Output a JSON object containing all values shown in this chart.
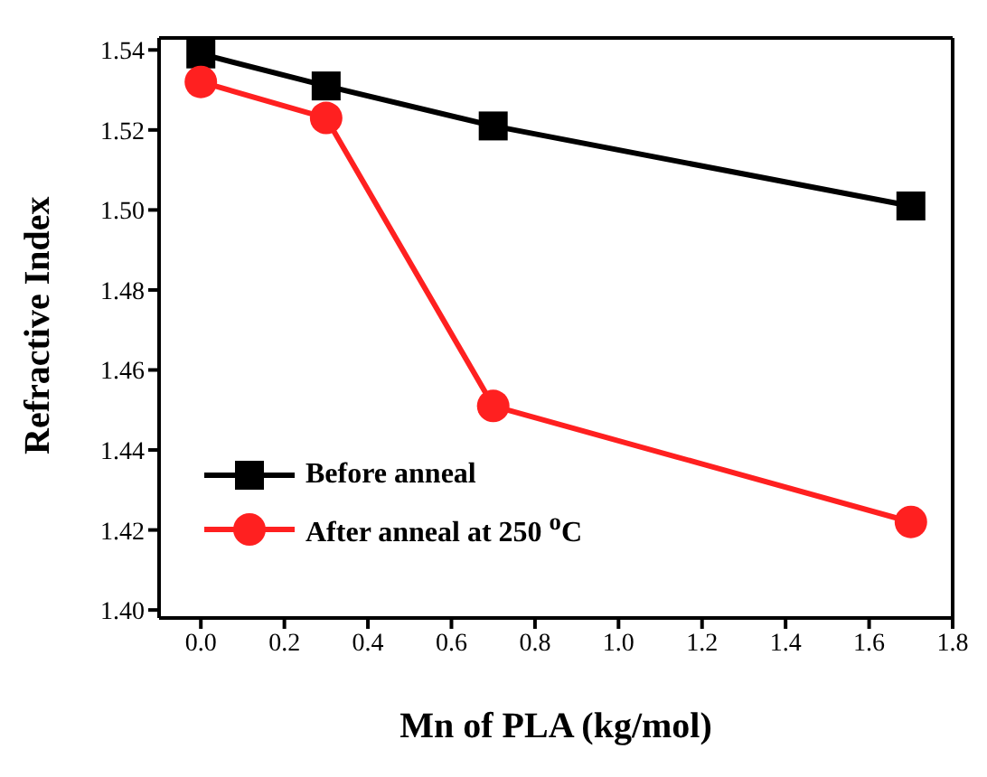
{
  "chart_data": {
    "type": "line",
    "xlabel": "Mn of PLA (kg/mol)",
    "ylabel": "Refractive Index",
    "x": [
      0.0,
      0.3,
      0.7,
      1.7
    ],
    "series": [
      {
        "name": "Before anneal",
        "color": "#000000",
        "marker": "square",
        "values": [
          1.539,
          1.531,
          1.521,
          1.501
        ]
      },
      {
        "name": "After anneal at 250 $^{o}$C",
        "color": "#ff2020",
        "marker": "circle",
        "values": [
          1.532,
          1.523,
          1.451,
          1.422
        ]
      }
    ],
    "xlim": [
      -0.1,
      1.8
    ],
    "xticks": [
      {
        "value": 0,
        "label": "0.0"
      },
      0.2,
      0.4,
      0.6,
      0.8,
      {
        "value": 1,
        "label": "1.0"
      },
      1.2,
      1.4,
      1.6,
      1.8
    ],
    "ylim": [
      1.398,
      1.543
    ],
    "yticks": [
      {
        "value": 1.4,
        "label": "1.40"
      },
      1.42,
      1.44,
      1.46,
      1.48,
      {
        "value": 1.5,
        "label": "1.50"
      },
      1.52,
      1.54
    ],
    "legend": "bottom left",
    "grid": false,
    "line_style": "solid"
  }
}
